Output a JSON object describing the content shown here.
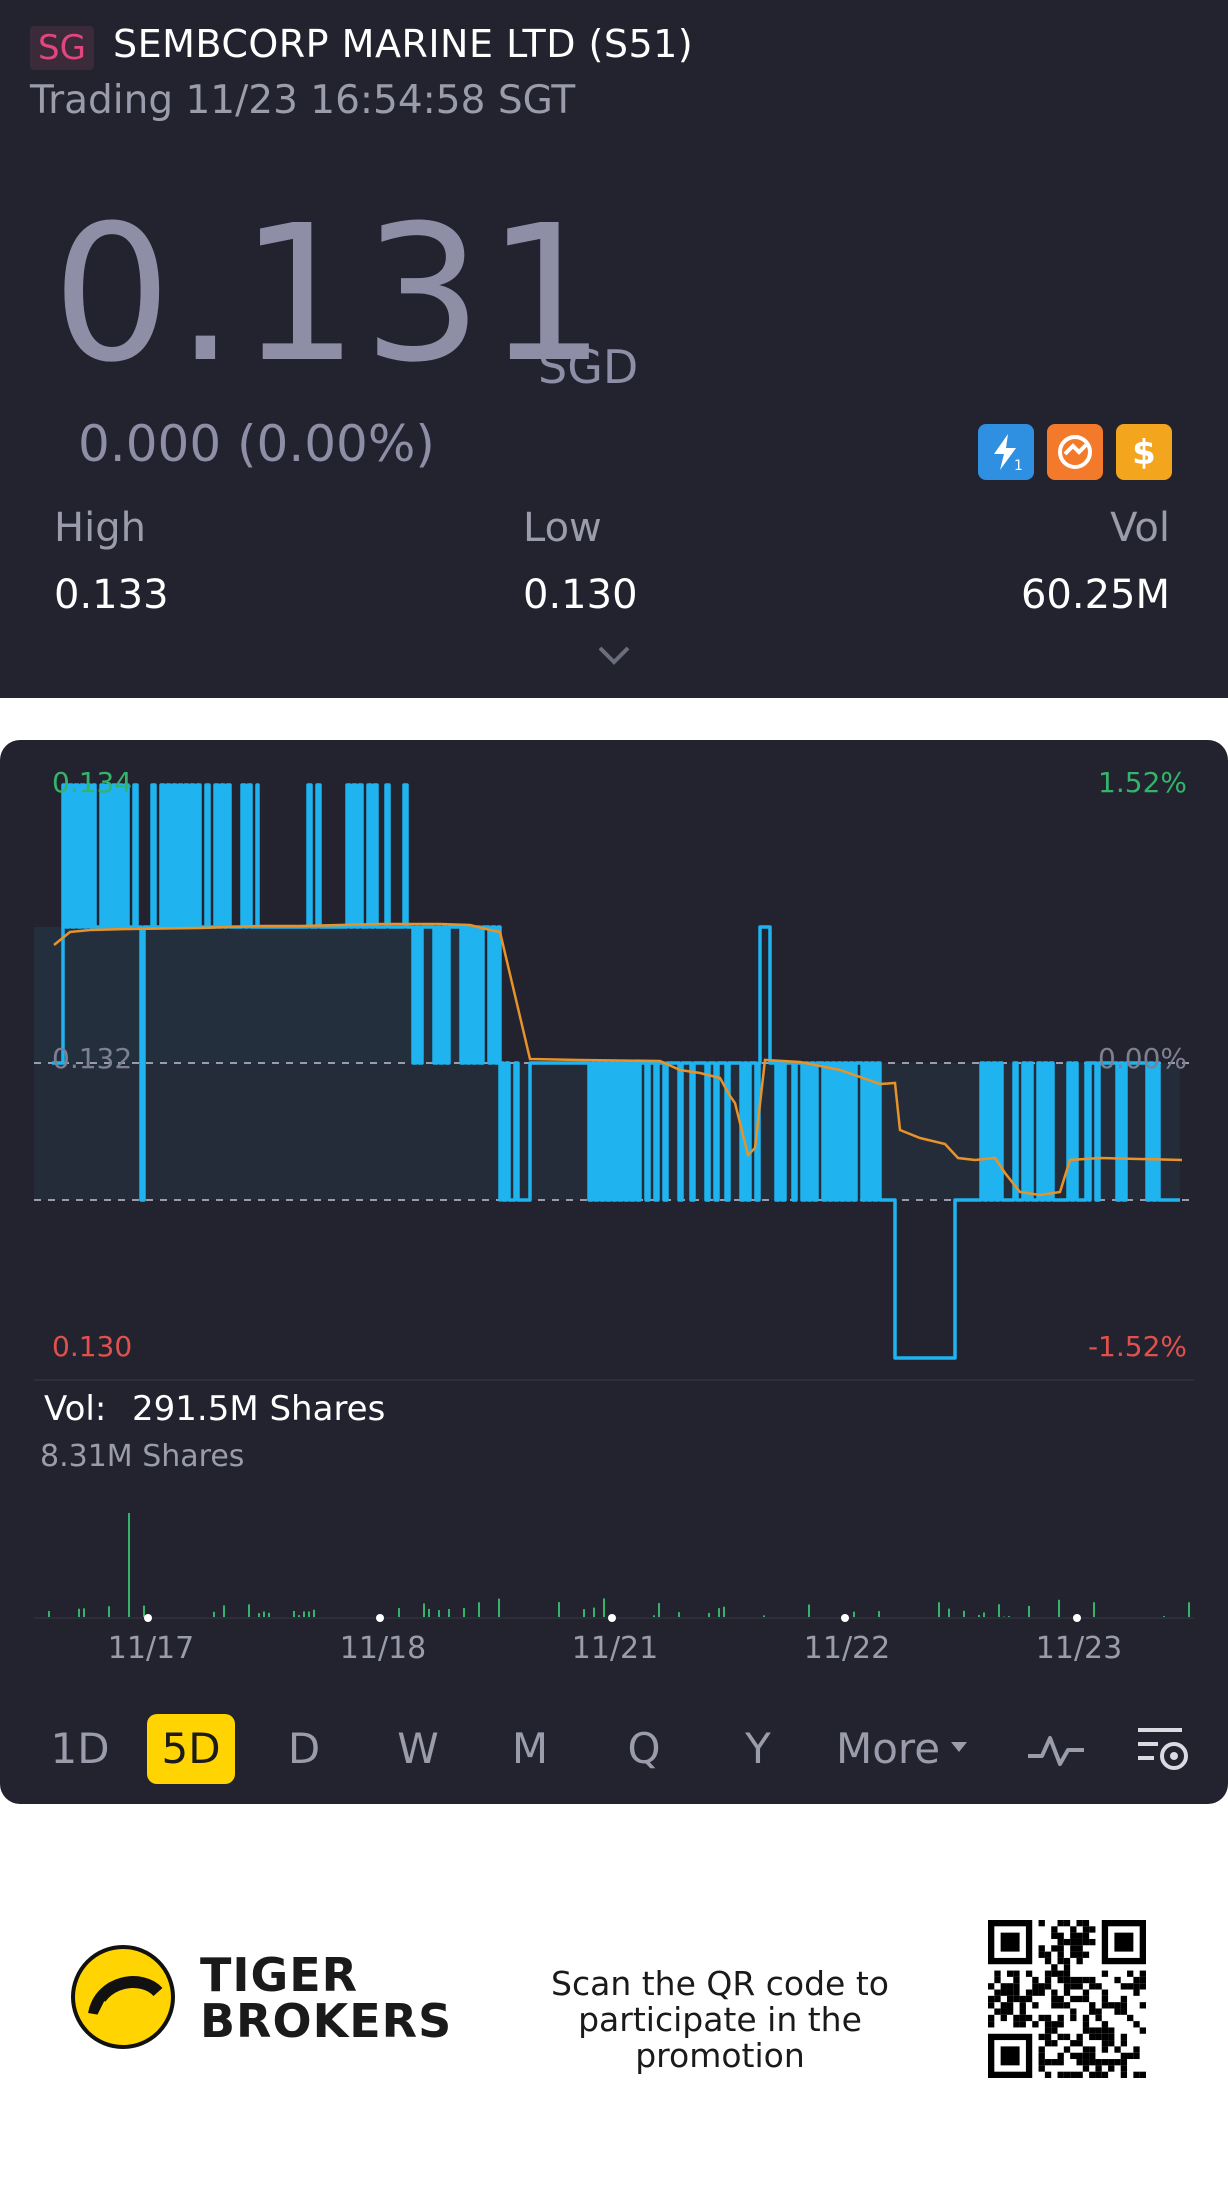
{
  "header": {
    "market_badge": "SG",
    "stock_name": "SEMBCORP MARINE LTD (S51)",
    "trade_status": "Trading 11/23 16:54:58 SGT"
  },
  "quote": {
    "price": "0.131",
    "currency": "SGD",
    "change": "0.000 (0.00%)",
    "high_label": "High",
    "high_value": "0.133",
    "low_label": "Low",
    "low_value": "0.130",
    "vol_label": "Vol",
    "vol_value": "60.25M"
  },
  "chart": {
    "price_top": "0.134",
    "price_mid": "0.132",
    "price_bottom": "0.130",
    "pct_top": "1.52%",
    "pct_mid": "0.00%",
    "pct_bottom": "-1.52%",
    "vol_label": "Vol:",
    "vol_value": "291.5M Shares",
    "vol_max": "8.31M Shares",
    "x_labels": [
      "11/17",
      "11/18",
      "11/21",
      "11/22",
      "11/23"
    ]
  },
  "chart_data": {
    "type": "line",
    "x": [
      "11/17",
      "11/18",
      "11/21",
      "11/22",
      "11/23"
    ],
    "ylim": [
      0.13,
      0.134
    ],
    "series": [],
    "colors": {
      "price": "#1fb4f0",
      "average": "#e8922a",
      "up": "#35b36b",
      "down": "#e0514e"
    }
  },
  "tabs": [
    "1D",
    "5D",
    "D",
    "W",
    "M",
    "Q",
    "Y",
    "More"
  ],
  "active_tab": "5D",
  "footer": {
    "brand_line1": "TIGER",
    "brand_line2": "BROKERS",
    "promo_line1": "Scan the QR code to",
    "promo_line2": "participate in the promotion"
  },
  "icons": [
    "lightning-icon",
    "swap-icon",
    "dollar-icon",
    "chevron-down-icon",
    "indicator-icon",
    "chart-settings-icon",
    "tiger-logo-icon",
    "qr-code-icon"
  ]
}
